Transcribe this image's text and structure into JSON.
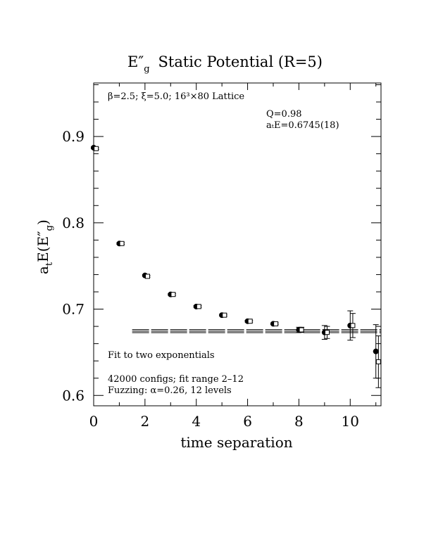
{
  "chart_data": {
    "type": "scatter",
    "title": "E″g  Static Potential (R=5)",
    "title_main": "E″",
    "title_sub": "g",
    "title_rest": "Static Potential (R=5)",
    "xlabel": "time separation",
    "ylabel": "aₜE(E″g)",
    "ylabel_parts": {
      "a": "a",
      "t": "t",
      "E": "E(E″",
      "g": "g",
      "close": ")"
    },
    "xlim": [
      0,
      11.2
    ],
    "ylim": [
      0.588,
      0.962
    ],
    "x_ticks": [
      0,
      2,
      4,
      6,
      8,
      10
    ],
    "x_tick_labels": [
      "0",
      "2",
      "4",
      "6",
      "8",
      "10"
    ],
    "y_ticks": [
      0.6,
      0.7,
      0.8,
      0.9
    ],
    "y_tick_labels": [
      "0.6",
      "0.7",
      "0.8",
      "0.9"
    ],
    "annotations": {
      "lattice": "β=2.5; ξ=5.0; 16³×80 Lattice",
      "q": "Q=0.98",
      "energy": "aₜE=0.6745(18)",
      "fit": "Fit to two exponentials",
      "configs": "42000 configs; fit range 2–12",
      "fuzzing": "Fuzzing: α=0.26, 12 levels"
    },
    "series": [
      {
        "marker": "filled-circle",
        "x": [
          0,
          1,
          2,
          3,
          4,
          5,
          6,
          7,
          8,
          9,
          10,
          11
        ],
        "y": [
          0.887,
          0.776,
          0.739,
          0.717,
          0.703,
          0.693,
          0.686,
          0.683,
          0.676,
          0.673,
          0.681,
          0.651
        ],
        "err": [
          0.001,
          0.001,
          0.001,
          0.001,
          0.001,
          0.001,
          0.001,
          0.001,
          0.003,
          0.008,
          0.017,
          0.031
        ]
      },
      {
        "marker": "open-square",
        "x": [
          0.1,
          1.1,
          2.1,
          3.1,
          4.1,
          5.1,
          6.1,
          7.1,
          8.1,
          9.1,
          10.1,
          11.1
        ],
        "y": [
          0.886,
          0.776,
          0.738,
          0.717,
          0.703,
          0.693,
          0.686,
          0.683,
          0.676,
          0.673,
          0.681,
          0.639
        ],
        "err": [
          0.001,
          0.001,
          0.001,
          0.001,
          0.001,
          0.001,
          0.001,
          0.001,
          0.003,
          0.007,
          0.014,
          0.03
        ]
      }
    ],
    "fit": {
      "x_start": 1.5,
      "x_end": 11.2,
      "value": 0.6745,
      "error": 0.0018
    },
    "grid": false
  }
}
